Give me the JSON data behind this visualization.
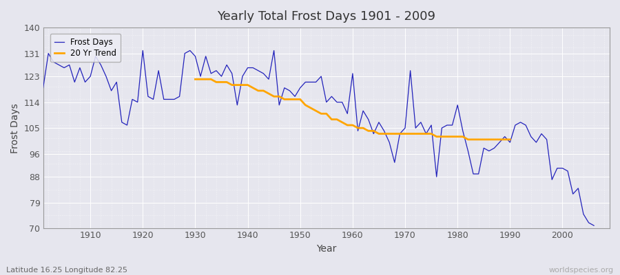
{
  "title": "Yearly Total Frost Days 1901 - 2009",
  "xlabel": "Year",
  "ylabel": "Frost Days",
  "subtitle": "Latitude 16.25 Longitude 82.25",
  "watermark": "worldspecies.org",
  "ylim": [
    70,
    140
  ],
  "yticks": [
    70,
    79,
    88,
    96,
    105,
    114,
    123,
    131,
    140
  ],
  "xlim": [
    1901,
    2009
  ],
  "xticks": [
    1910,
    1920,
    1930,
    1940,
    1950,
    1960,
    1970,
    1980,
    1990,
    2000
  ],
  "frost_color": "#2222bb",
  "trend_color": "#FFA500",
  "bg_color": "#e6e6ee",
  "grid_color": "#ffffff",
  "years": [
    1901,
    1902,
    1903,
    1904,
    1905,
    1906,
    1907,
    1908,
    1909,
    1910,
    1911,
    1912,
    1913,
    1914,
    1915,
    1916,
    1917,
    1918,
    1919,
    1920,
    1921,
    1922,
    1923,
    1924,
    1925,
    1926,
    1927,
    1928,
    1929,
    1930,
    1931,
    1932,
    1933,
    1934,
    1935,
    1936,
    1937,
    1938,
    1939,
    1940,
    1941,
    1942,
    1943,
    1944,
    1945,
    1946,
    1947,
    1948,
    1949,
    1950,
    1951,
    1952,
    1953,
    1954,
    1955,
    1956,
    1957,
    1958,
    1959,
    1960,
    1961,
    1962,
    1963,
    1964,
    1965,
    1966,
    1967,
    1968,
    1969,
    1970,
    1971,
    1972,
    1973,
    1974,
    1975,
    1976,
    1977,
    1978,
    1979,
    1980,
    1981,
    1982,
    1983,
    1984,
    1985,
    1986,
    1987,
    1988,
    1989,
    1990,
    1991,
    1992,
    1993,
    1994,
    1995,
    1996,
    1997,
    1998,
    1999,
    2000,
    2001,
    2002,
    2003,
    2004,
    2005,
    2006,
    2007,
    2008,
    2009
  ],
  "frost_days": [
    119,
    131,
    128,
    127,
    126,
    127,
    121,
    126,
    121,
    123,
    130,
    127,
    123,
    118,
    121,
    107,
    106,
    115,
    114,
    132,
    116,
    115,
    125,
    115,
    115,
    115,
    116,
    131,
    132,
    130,
    123,
    130,
    124,
    125,
    123,
    127,
    124,
    113,
    123,
    126,
    126,
    125,
    124,
    122,
    132,
    113,
    119,
    118,
    116,
    119,
    121,
    121,
    121,
    123,
    114,
    116,
    114,
    114,
    110,
    124,
    104,
    111,
    108,
    103,
    107,
    104,
    100,
    93,
    103,
    105,
    125,
    105,
    107,
    103,
    106,
    88,
    105,
    106,
    106,
    113,
    104,
    97,
    89,
    89,
    98,
    97,
    98,
    100,
    102,
    100,
    106,
    107,
    106,
    102,
    100,
    103,
    101,
    87,
    91,
    91,
    90,
    82,
    84,
    75,
    72,
    71,
    null,
    null,
    null
  ],
  "trend_start_year": 1930,
  "trend_years": [
    1930,
    1931,
    1932,
    1933,
    1934,
    1935,
    1936,
    1937,
    1938,
    1939,
    1940,
    1941,
    1942,
    1943,
    1944,
    1945,
    1946,
    1947,
    1948,
    1949,
    1950,
    1951,
    1952,
    1953,
    1954,
    1955,
    1956,
    1957,
    1958,
    1959,
    1960,
    1961,
    1962,
    1963,
    1964,
    1965,
    1966,
    1967,
    1968,
    1969,
    1970,
    1971,
    1972,
    1973,
    1974,
    1975,
    1976,
    1977,
    1978,
    1979,
    1980,
    1981,
    1982,
    1983,
    1984,
    1985,
    1986,
    1987,
    1988,
    1989,
    1990
  ],
  "trend_values": [
    122,
    122,
    122,
    122,
    121,
    121,
    121,
    120,
    120,
    120,
    120,
    119,
    118,
    118,
    117,
    116,
    116,
    115,
    115,
    115,
    115,
    113,
    112,
    111,
    110,
    110,
    108,
    108,
    107,
    106,
    106,
    105,
    105,
    104,
    104,
    103,
    103,
    103,
    103,
    103,
    103,
    103,
    103,
    103,
    103,
    103,
    102,
    102,
    102,
    102,
    102,
    102,
    101,
    101,
    101,
    101,
    101,
    101,
    101,
    101,
    101
  ]
}
